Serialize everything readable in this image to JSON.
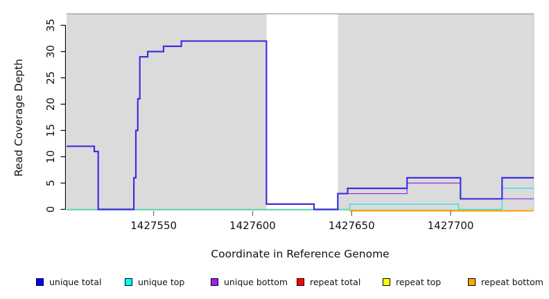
{
  "x_axis": {
    "label": "Coordinate in Reference Genome",
    "tick_labels": [
      "1427550",
      "1427600",
      "1427650",
      "1427700"
    ],
    "tick_values": [
      1427550,
      1427600,
      1427650,
      1427700
    ]
  },
  "y_axis": {
    "label": "Read Coverage Depth",
    "tick_labels": [
      "0",
      "5",
      "10",
      "15",
      "20",
      "25",
      "30",
      "35"
    ],
    "tick_values": [
      0,
      5,
      10,
      15,
      20,
      25,
      30,
      35
    ]
  },
  "legend": [
    {
      "label": "unique total",
      "color": "#0000FF"
    },
    {
      "label": "unique top",
      "color": "#00FFFF"
    },
    {
      "label": "unique bottom",
      "color": "#A020F0"
    },
    {
      "label": "repeat total",
      "color": "#FF0000"
    },
    {
      "label": "repeat top",
      "color": "#FFFF00"
    },
    {
      "label": "repeat bottom",
      "color": "#FFA500"
    }
  ],
  "chart_data": {
    "type": "line",
    "step": true,
    "title": "",
    "xlabel": "Coordinate in Reference Genome",
    "ylabel": "Read Coverage Depth",
    "xlim": [
      1427506,
      1427742
    ],
    "ylim": [
      0,
      37
    ],
    "grid": false,
    "legend_position": "bottom",
    "background_bands": [
      {
        "from": 1427506,
        "to": 1427607,
        "color": "#DBDBDB",
        "kind": "masked-region"
      },
      {
        "from": 1427607,
        "to": 1427643,
        "color": "#FFFFFF",
        "kind": "open-region"
      },
      {
        "from": 1427643,
        "to": 1427742,
        "color": "#DBDBDB",
        "kind": "masked-region"
      }
    ],
    "series": [
      {
        "name": "unique top",
        "color": "#00FFFF",
        "render": {
          "color": "#45E0E8",
          "width": 1.6,
          "z": 1,
          "y_offset": 0
        },
        "steps": [
          [
            1427506,
            0
          ],
          [
            1427649,
            1
          ],
          [
            1427704,
            0
          ],
          [
            1427726,
            4
          ]
        ]
      },
      {
        "name": "repeat top",
        "color": "#FFFF00",
        "render": {
          "color": "#8FCF8F",
          "width": 1.4,
          "z": 2,
          "y_offset": 0.9,
          "end": 1427726,
          "note": "yellow line at depth 0 blends with cyan at 0 and appears light green"
        },
        "steps": [
          [
            1427506,
            0
          ]
        ]
      },
      {
        "name": "repeat bottom",
        "color": "#FFA500",
        "render": {
          "color": "#FF9E00",
          "width": 2.0,
          "z": 3,
          "y_offset": 2.1
        },
        "steps": [
          [
            1427649,
            0
          ]
        ]
      },
      {
        "name": "unique bottom",
        "color": "#A020F0",
        "render": {
          "color": "#9B45D8",
          "width": 1.4,
          "z": 4,
          "y_offset": 0
        },
        "steps": [
          [
            1427506,
            12
          ],
          [
            1427520,
            11
          ],
          [
            1427522,
            0
          ],
          [
            1427540,
            6
          ],
          [
            1427541,
            15
          ],
          [
            1427542,
            21
          ],
          [
            1427543,
            29
          ],
          [
            1427547,
            30
          ],
          [
            1427555,
            31
          ],
          [
            1427564,
            32
          ],
          [
            1427607,
            1
          ],
          [
            1427631,
            0
          ],
          [
            1427643,
            3
          ],
          [
            1427678,
            5
          ],
          [
            1427705,
            2
          ]
        ]
      },
      {
        "name": "unique total",
        "color": "#0000FF",
        "render": {
          "color": "#3C30E0",
          "width": 2.2,
          "z": 5,
          "y_offset": 0
        },
        "steps": [
          [
            1427506,
            12
          ],
          [
            1427520,
            11
          ],
          [
            1427522,
            0
          ],
          [
            1427540,
            6
          ],
          [
            1427541,
            15
          ],
          [
            1427542,
            21
          ],
          [
            1427543,
            29
          ],
          [
            1427547,
            30
          ],
          [
            1427555,
            31
          ],
          [
            1427564,
            32
          ],
          [
            1427607,
            1
          ],
          [
            1427631,
            0
          ],
          [
            1427643,
            3
          ],
          [
            1427648,
            4
          ],
          [
            1427678,
            6
          ],
          [
            1427705,
            2
          ],
          [
            1427726,
            6
          ]
        ]
      },
      {
        "name": "repeat total",
        "color": "#FF0000",
        "render": null,
        "steps": [
          [
            1427506,
            0
          ]
        ]
      }
    ]
  }
}
